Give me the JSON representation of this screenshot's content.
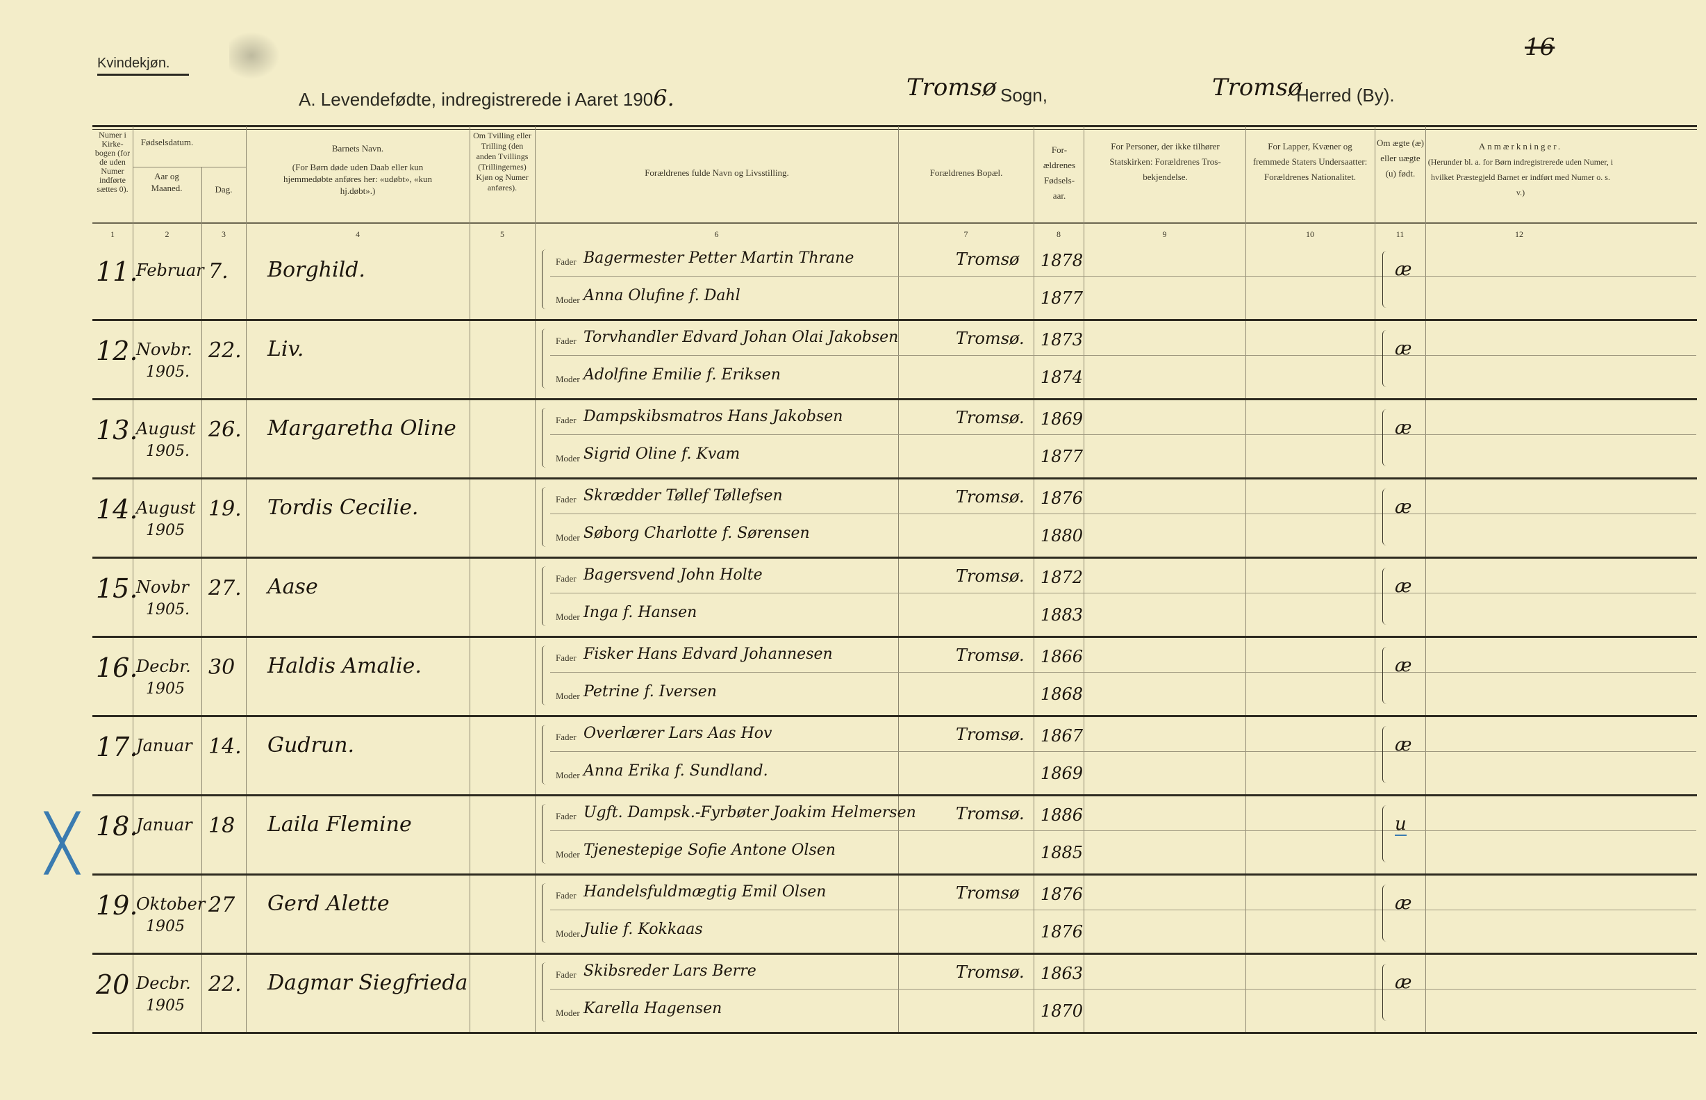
{
  "header": {
    "gender_label": "Kvindekjøn.",
    "title": "A.  Levendefødte, indregistrerede i Aaret 190",
    "year_digit": "6.",
    "parish_value": "Tromsø",
    "parish_label": "Sogn,",
    "district_value": "Tromsø",
    "district_label": "Herred (By).",
    "page_mark": "16"
  },
  "columns": [
    {
      "num": "1",
      "label": "Numer i Kirke-bogen (for de uden Numer indførte sættes 0)."
    },
    {
      "num": "2",
      "label": "Aar og Maaned."
    },
    {
      "num": "3",
      "label": "Dag."
    },
    {
      "num": "4",
      "label": "Barnets Navn.",
      "note": "(For Børn døde uden Daab eller kun hjemmedøbte anføres her: «udøbt», «kun hj.døbt».)"
    },
    {
      "num": "5",
      "label": "Om Tvilling eller Trilling (den anden Tvillings (Trillingernes) Kjøn og Numer anføres)."
    },
    {
      "num": "6",
      "label": "Forældrenes fulde Navn og Livsstilling."
    },
    {
      "num": "7",
      "label": "Forældrenes Bopæl."
    },
    {
      "num": "8",
      "label": "For-ældrenes Fødsels-aar."
    },
    {
      "num": "9",
      "label": "For Personer, der ikke tilhører Statskirken: Forældrenes Tros-bekjendelse."
    },
    {
      "num": "10",
      "label": "For Lapper, Kvæner og fremmede Staters Undersaatter: Forældrenes Nationalitet."
    },
    {
      "num": "11",
      "label": "Om ægte (æ) eller uægte (u) født."
    },
    {
      "num": "12",
      "label": "Anmærkninger.",
      "note": "(Herunder bl. a. for Børn indregistrerede uden Numer, i hvilket Præstegjeld Barnet er indført med Numer o. s. v.)"
    }
  ],
  "date_group_label": "Fødselsdatum.",
  "father_label": "Fader",
  "mother_label": "Moder",
  "rows": [
    {
      "num": "11.",
      "month": "Februar",
      "year": "",
      "day": "7.",
      "name": "Borghild.",
      "father": "Bagermester Petter Martin Thrane",
      "mother": "Anna Olufine f. Dahl",
      "residence": "Tromsø",
      "father_born": "1878",
      "mother_born": "1877",
      "legit": "æ",
      "marked": false
    },
    {
      "num": "12.",
      "month": "Novbr.",
      "year": "1905.",
      "day": "22.",
      "name": "Liv.",
      "father": "Torvhandler Edvard Johan Olai Jakobsen",
      "mother": "Adolfine Emilie f. Eriksen",
      "residence": "Tromsø.",
      "father_born": "1873",
      "mother_born": "1874",
      "legit": "æ",
      "marked": false
    },
    {
      "num": "13.",
      "month": "August",
      "year": "1905.",
      "day": "26.",
      "name": "Margaretha Oline",
      "father": "Dampskibsmatros Hans Jakobsen",
      "mother": "Sigrid Oline f. Kvam",
      "residence": "Tromsø.",
      "father_born": "1869",
      "mother_born": "1877",
      "legit": "æ",
      "marked": false
    },
    {
      "num": "14.",
      "month": "August",
      "year": "1905",
      "day": "19.",
      "name": "Tordis Cecilie.",
      "father": "Skrædder Tøllef Tøllefsen",
      "mother": "Søborg Charlotte f. Sørensen",
      "residence": "Tromsø.",
      "father_born": "1876",
      "mother_born": "1880",
      "legit": "æ",
      "marked": false
    },
    {
      "num": "15.",
      "month": "Novbr",
      "year": "1905.",
      "day": "27.",
      "name": "Aase",
      "father": "Bagersvend John Holte",
      "mother": "Inga f. Hansen",
      "residence": "Tromsø.",
      "father_born": "1872",
      "mother_born": "1883",
      "legit": "æ",
      "marked": false
    },
    {
      "num": "16.",
      "month": "Decbr.",
      "year": "1905",
      "day": "30",
      "name": "Haldis Amalie.",
      "father": "Fisker Hans Edvard Johannesen",
      "mother": "Petrine f. Iversen",
      "residence": "Tromsø.",
      "father_born": "1866",
      "mother_born": "1868",
      "legit": "æ",
      "marked": false
    },
    {
      "num": "17.",
      "month": "Januar",
      "year": "",
      "day": "14.",
      "name": "Gudrun.",
      "father": "Overlærer Lars Aas Hov",
      "mother": "Anna Erika f. Sundland.",
      "residence": "Tromsø.",
      "father_born": "1867",
      "mother_born": "1869",
      "legit": "æ",
      "marked": false
    },
    {
      "num": "18.",
      "month": "Januar",
      "year": "",
      "day": "18",
      "name": "Laila Flemine",
      "father": "Ugft. Dampsk.-Fyrbøter Joakim Helmersen",
      "mother": "Tjenestepige Sofie Antone Olsen",
      "residence": "Tromsø.",
      "father_born": "1886",
      "mother_born": "1885",
      "legit": "u",
      "marked": true
    },
    {
      "num": "19.",
      "month": "Oktober",
      "year": "1905",
      "day": "27",
      "name": "Gerd Alette",
      "father": "Handelsfuldmægtig Emil Olsen",
      "mother": "Julie f. Kokkaas",
      "residence": "Tromsø",
      "father_born": "1876",
      "mother_born": "1876",
      "legit": "æ",
      "marked": false
    },
    {
      "num": "20",
      "month": "Decbr.",
      "year": "1905",
      "day": "22.",
      "name": "Dagmar Siegfrieda",
      "father": "Skibsreder Lars Berre",
      "mother": "Karella Hagensen",
      "residence": "Tromsø.",
      "father_born": "1863",
      "mother_born": "1870",
      "legit": "æ",
      "marked": false
    }
  ],
  "colors": {
    "paper": "#f3edc9",
    "ink": "#1c160e",
    "blue_pencil": "#3a7bb0"
  }
}
